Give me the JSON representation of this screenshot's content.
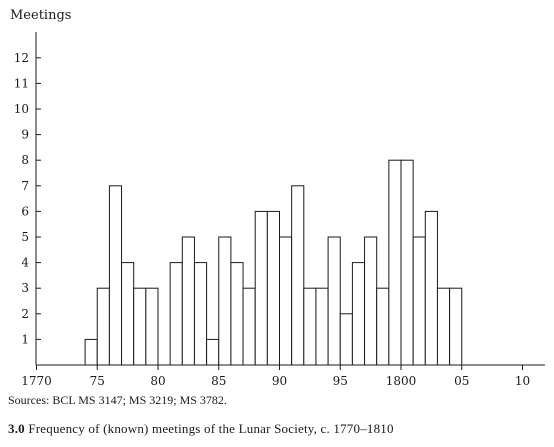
{
  "chart_data": {
    "type": "bar",
    "ylabel": "Meetings",
    "ylim": [
      0,
      13
    ],
    "yticks": [
      1,
      2,
      3,
      4,
      5,
      6,
      7,
      8,
      9,
      10,
      11,
      12
    ],
    "xlim": [
      1770,
      1811
    ],
    "xticks": [
      {
        "value": 1770,
        "label": "1770"
      },
      {
        "value": 1775,
        "label": "75"
      },
      {
        "value": 1780,
        "label": "80"
      },
      {
        "value": 1785,
        "label": "85"
      },
      {
        "value": 1790,
        "label": "90"
      },
      {
        "value": 1795,
        "label": "95"
      },
      {
        "value": 1800,
        "label": "1800"
      },
      {
        "value": 1805,
        "label": "05"
      },
      {
        "value": 1810,
        "label": "10"
      }
    ],
    "x": [
      1774,
      1775,
      1776,
      1777,
      1778,
      1779,
      1781,
      1782,
      1783,
      1784,
      1785,
      1786,
      1787,
      1788,
      1789,
      1790,
      1791,
      1792,
      1793,
      1794,
      1795,
      1796,
      1797,
      1798,
      1799,
      1800,
      1801,
      1802,
      1803,
      1804
    ],
    "values": [
      1,
      3,
      7,
      4,
      3,
      3,
      4,
      5,
      4,
      1,
      5,
      4,
      3,
      6,
      6,
      5,
      7,
      3,
      3,
      5,
      2,
      4,
      5,
      3,
      8,
      8,
      5,
      6,
      3,
      3
    ],
    "legend": "none",
    "grid": false
  },
  "sources": "Sources: BCL MS 3147; MS 3219; MS 3782.",
  "caption": {
    "number": "3.0",
    "text": "Frequency of (known) meetings of the Lunar Society, c. 1770–1810"
  }
}
